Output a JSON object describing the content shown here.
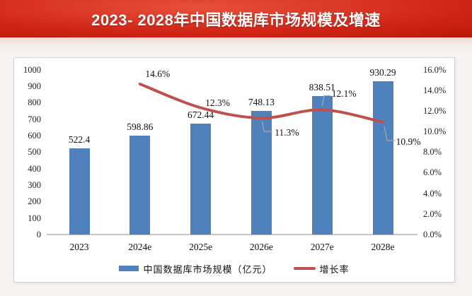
{
  "header": {
    "title": "2023- 2028年中国数据库市场规模及增速",
    "bg_color": "#c3170a",
    "text_color": "#ffffff"
  },
  "chart_data": {
    "type": "bar",
    "categories": [
      "2023",
      "2024e",
      "2025e",
      "2026e",
      "2027e",
      "2028e"
    ],
    "series": [
      {
        "name": "中国数据库市场规模（亿元）",
        "type": "bar",
        "color": "#4f81bd",
        "values": [
          522.4,
          598.86,
          672.44,
          748.13,
          838.51,
          930.29
        ],
        "labels": [
          "522.4",
          "598.86",
          "672.44",
          "748.13",
          "838.51",
          "930.29"
        ]
      },
      {
        "name": "增长率",
        "type": "line",
        "color": "#c0504d",
        "values": [
          null,
          14.6,
          12.3,
          11.3,
          12.1,
          10.9
        ],
        "labels": [
          null,
          "14.6%",
          "12.3%",
          "11.3%",
          "12.1%",
          "10.9%"
        ]
      }
    ],
    "left_axis": {
      "min": 0,
      "max": 1000,
      "step": 100,
      "ticks": [
        "1000",
        "900",
        "800",
        "700",
        "600",
        "500",
        "400",
        "300",
        "200",
        "100",
        "0"
      ]
    },
    "right_axis": {
      "min": 0,
      "max": 16,
      "step": 2,
      "ticks": [
        "16.0%",
        "14.0%",
        "12.0%",
        "10.0%",
        "8.0%",
        "6.0%",
        "4.0%",
        "2.0%",
        "0.0%"
      ]
    },
    "legend": [
      {
        "label": "中国数据库市场规模（亿元）",
        "swatch": "bar",
        "color": "#4f81bd"
      },
      {
        "label": "增长率",
        "swatch": "line",
        "color": "#c0504d"
      }
    ],
    "grid": false,
    "legend_position": "bottom"
  }
}
